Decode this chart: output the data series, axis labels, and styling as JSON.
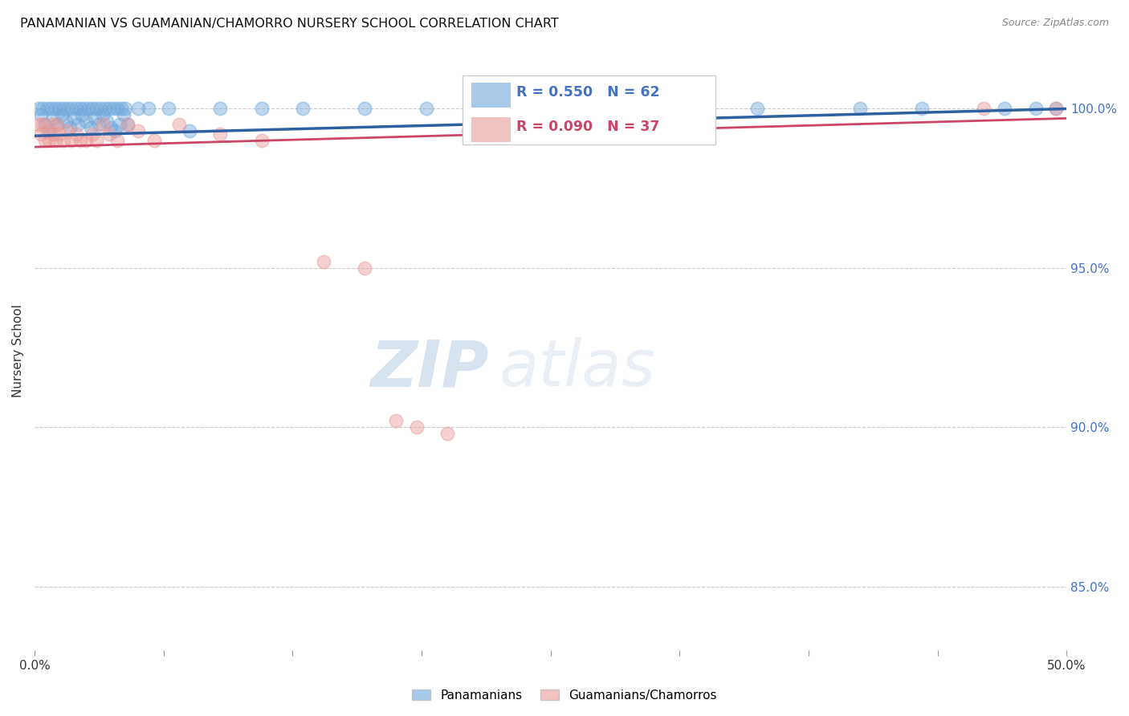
{
  "title": "PANAMANIAN VS GUAMANIAN/CHAMORRO NURSERY SCHOOL CORRELATION CHART",
  "source": "Source: ZipAtlas.com",
  "ylabel": "Nursery School",
  "xmin": 0.0,
  "xmax": 50.0,
  "ymin": 83.0,
  "ymax": 101.8,
  "legend_blue_r": "R = 0.550",
  "legend_blue_n": "N = 62",
  "legend_pink_r": "R = 0.090",
  "legend_pink_n": "N = 37",
  "legend_label_blue": "Panamanians",
  "legend_label_pink": "Guamanians/Chamorros",
  "blue_color": "#6fa8dc",
  "pink_color": "#ea9999",
  "blue_line_color": "#3060a0",
  "pink_line_color": "#cc4466",
  "watermark_zip": "ZIP",
  "watermark_atlas": "atlas",
  "blue_scatter_x": [
    0.2,
    0.3,
    0.4,
    0.5,
    0.6,
    0.7,
    0.8,
    0.9,
    1.0,
    1.1,
    1.2,
    1.3,
    1.4,
    1.5,
    1.6,
    1.7,
    1.8,
    1.9,
    2.0,
    2.1,
    2.2,
    2.3,
    2.4,
    2.5,
    2.6,
    2.7,
    2.8,
    2.9,
    3.0,
    3.1,
    3.2,
    3.3,
    3.4,
    3.5,
    3.6,
    3.7,
    3.8,
    3.9,
    4.0,
    4.1,
    4.2,
    4.3,
    4.4,
    4.5,
    5.0,
    5.5,
    6.5,
    7.5,
    9.0,
    11.0,
    13.0,
    16.0,
    19.0,
    22.0,
    26.0,
    30.0,
    35.0,
    40.0,
    43.0,
    47.0,
    48.5,
    49.5
  ],
  "blue_scatter_y": [
    100.0,
    99.8,
    100.0,
    99.5,
    100.0,
    99.3,
    100.0,
    99.7,
    100.0,
    99.5,
    100.0,
    99.8,
    100.0,
    99.6,
    100.0,
    99.4,
    100.0,
    99.7,
    100.0,
    99.5,
    100.0,
    99.8,
    100.0,
    99.6,
    100.0,
    99.4,
    100.0,
    99.7,
    100.0,
    99.5,
    100.0,
    99.8,
    100.0,
    99.6,
    100.0,
    99.4,
    100.0,
    99.3,
    100.0,
    99.5,
    100.0,
    99.8,
    100.0,
    99.5,
    100.0,
    100.0,
    100.0,
    99.3,
    100.0,
    100.0,
    100.0,
    100.0,
    100.0,
    100.0,
    100.0,
    100.0,
    100.0,
    100.0,
    100.0,
    100.0,
    100.0,
    100.0
  ],
  "pink_scatter_x": [
    0.2,
    0.3,
    0.4,
    0.5,
    0.6,
    0.7,
    0.8,
    0.9,
    1.0,
    1.1,
    1.2,
    1.4,
    1.6,
    1.8,
    2.0,
    2.2,
    2.5,
    2.8,
    3.0,
    3.3,
    3.6,
    4.0,
    4.5,
    5.0,
    5.8,
    7.0,
    9.0,
    11.0,
    14.0,
    16.0,
    17.5,
    18.5,
    20.0,
    21.0,
    23.0,
    46.0,
    49.5
  ],
  "pink_scatter_y": [
    99.5,
    99.2,
    99.5,
    99.0,
    99.3,
    99.0,
    99.5,
    99.2,
    99.0,
    99.5,
    99.2,
    99.0,
    99.3,
    99.0,
    99.2,
    99.0,
    99.0,
    99.2,
    99.0,
    99.5,
    99.2,
    99.0,
    99.5,
    99.3,
    99.0,
    99.5,
    99.2,
    99.0,
    95.2,
    95.0,
    90.2,
    90.0,
    89.8,
    99.3,
    99.5,
    100.0,
    100.0
  ]
}
